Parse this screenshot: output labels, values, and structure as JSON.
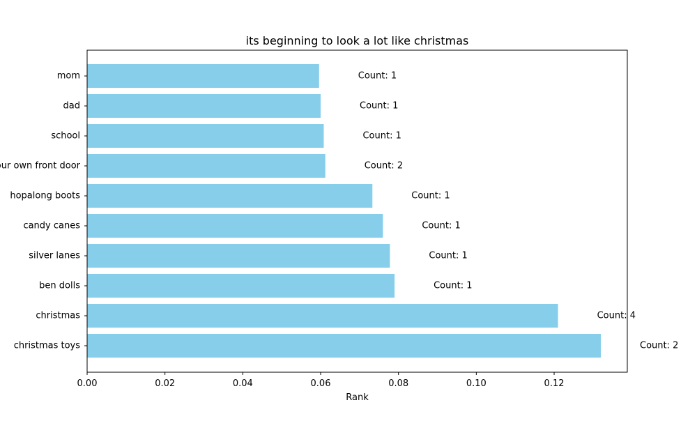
{
  "chart_data": {
    "type": "bar",
    "orientation": "horizontal",
    "title": "its beginning to look a lot like christmas",
    "xlabel": "Rank",
    "ylabel": "",
    "categories": [
      "christmas toys",
      "christmas",
      "ben dolls",
      "silver lanes",
      "candy canes",
      "hopalong boots",
      "your own front door",
      "school",
      "dad",
      "mom"
    ],
    "values": [
      0.132,
      0.121,
      0.079,
      0.0778,
      0.076,
      0.0733,
      0.0612,
      0.0608,
      0.06,
      0.0596
    ],
    "data_labels": [
      "Count: 2",
      "Count: 4",
      "Count: 1",
      "Count: 1",
      "Count: 1",
      "Count: 1",
      "Count: 2",
      "Count: 1",
      "Count: 1",
      "Count: 1"
    ],
    "xlim": [
      0,
      0.1388
    ],
    "xticks": [
      0.0,
      0.02,
      0.04,
      0.06,
      0.08,
      0.1,
      0.12
    ],
    "xtick_labels": [
      "0.00",
      "0.02",
      "0.04",
      "0.06",
      "0.08",
      "0.10",
      "0.12"
    ],
    "grid": false,
    "legend": "none",
    "colors": {
      "bar": "#87CEEB",
      "axis": "#000000",
      "background": "#ffffff"
    }
  }
}
